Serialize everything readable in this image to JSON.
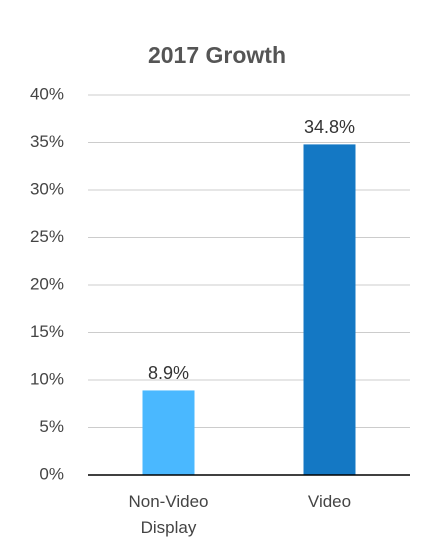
{
  "chart_data": {
    "type": "bar",
    "title": "2017 Growth",
    "categories": [
      "Non-Video Display",
      "Video"
    ],
    "values": [
      8.9,
      34.8
    ],
    "value_labels": [
      "8.9%",
      "34.8%"
    ],
    "colors": [
      "#4ab8ff",
      "#1478c4"
    ],
    "ylim": [
      0,
      40
    ],
    "yticks": [
      {
        "value": 0,
        "label": "0%"
      },
      {
        "value": 5,
        "label": "5%"
      },
      {
        "value": 10,
        "label": "10%"
      },
      {
        "value": 15,
        "label": "15%"
      },
      {
        "value": 20,
        "label": "20%"
      },
      {
        "value": 25,
        "label": "25%"
      },
      {
        "value": 30,
        "label": "30%"
      },
      {
        "value": 35,
        "label": "35%"
      },
      {
        "value": 40,
        "label": "40%"
      }
    ],
    "grid": true
  }
}
